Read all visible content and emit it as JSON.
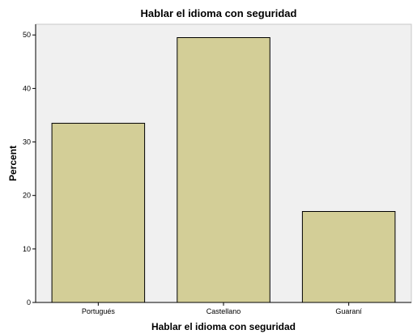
{
  "chart_data": {
    "type": "bar",
    "title": "Hablar el idioma con seguridad",
    "xlabel": "Hablar el idioma con seguridad",
    "ylabel": "Percent",
    "categories": [
      "Portugués",
      "Castellano",
      "Guaraní"
    ],
    "values": [
      33.5,
      49.5,
      17.0
    ],
    "ylim": [
      0,
      52
    ],
    "yticks": [
      0,
      10,
      20,
      30,
      40,
      50
    ],
    "grid": false,
    "legend": "none",
    "colors": {
      "bar": "#d3ce97",
      "plot_background": "#f0f0f0",
      "bar_outline": "#000000"
    }
  }
}
